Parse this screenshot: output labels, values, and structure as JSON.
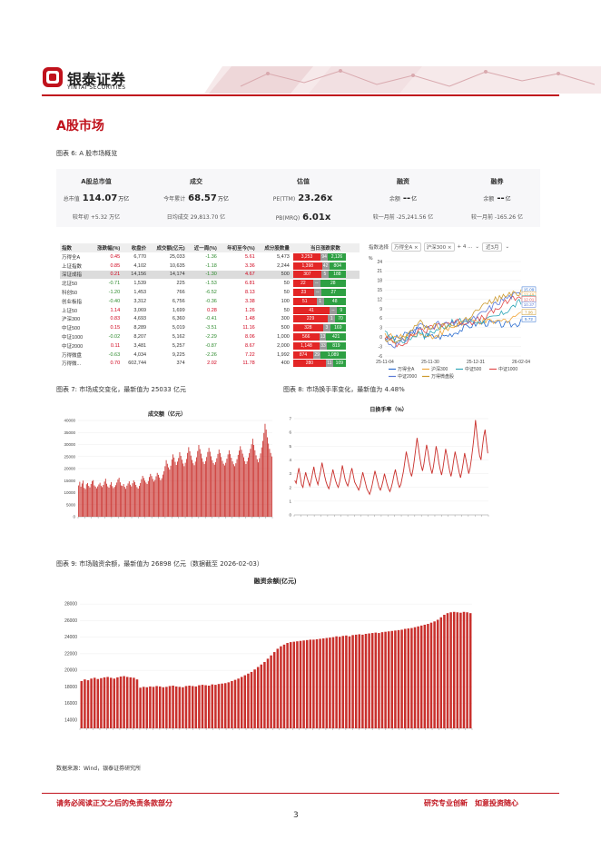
{
  "header": {
    "brand_cn": "银泰证券",
    "brand_en": "YINTAI SECURITIES"
  },
  "section_title": "A股市场",
  "fig6": {
    "caption": "图表 6: A 股市场概览"
  },
  "overview": {
    "cols": [
      {
        "title": "A股总市值",
        "r1_label": "总市值",
        "r1_value": "114.07",
        "r1_unit": "万亿",
        "r2_label": "较年初",
        "r2_value": "+5.32 万亿"
      },
      {
        "title": "成交",
        "r1_label": "今年累计",
        "r1_value": "68.57",
        "r1_unit": "万亿",
        "r2_label": "日均成交",
        "r2_value": "29,813.70 亿"
      },
      {
        "title": "估值",
        "r1_label": "PE(TTM)",
        "r1_value": "23.26x",
        "r1_unit": "",
        "r2_label": "PB(MRQ)",
        "r2_value": "6.01x"
      },
      {
        "title": "融资",
        "r1_label": "余额",
        "r1_value": "--",
        "r1_unit": "亿",
        "r2_label": "较一月前",
        "r2_value": "-25,241.56 亿"
      },
      {
        "title": "融券",
        "r1_label": "余额",
        "r1_value": "--",
        "r1_unit": "亿",
        "r2_label": "较一月前",
        "r2_value": "-165.26 亿"
      }
    ]
  },
  "market_table": {
    "headers": [
      "指数",
      "涨跌幅(%)",
      "收盘价",
      "成交额(亿元)",
      "近一周(%)",
      "年初至今(%)",
      "成分股数量",
      "当日涨跌家数"
    ],
    "rows": [
      [
        "万得全A",
        "0.45",
        "6,770",
        "25,033",
        "-1.36",
        "5.61",
        "5,473",
        "3,253",
        "94",
        "2,126"
      ],
      [
        "上证指数",
        "0.85",
        "4,102",
        "10,635",
        "-1.18",
        "3.36",
        "2,244",
        "1,398",
        "42",
        "804"
      ],
      [
        "深证成指",
        "0.21",
        "14,156",
        "14,174",
        "-1.30",
        "4.67",
        "500",
        "307",
        "5",
        "188"
      ],
      [
        "北证50",
        "-0.71",
        "1,539",
        "225",
        "-1.53",
        "6.81",
        "50",
        "22",
        "--",
        "28"
      ],
      [
        "科创50",
        "-1.20",
        "1,453",
        "766",
        "-6.52",
        "8.13",
        "50",
        "23",
        "--",
        "27"
      ],
      [
        "创业板指",
        "-0.40",
        "3,312",
        "6,756",
        "-0.36",
        "3.38",
        "100",
        "51",
        "1",
        "48"
      ],
      [
        "上证50",
        "1.14",
        "3,069",
        "1,699",
        "0.28",
        "1.26",
        "50",
        "41",
        "--",
        "9"
      ],
      [
        "沪深300",
        "0.83",
        "4,693",
        "6,360",
        "-0.41",
        "1.48",
        "300",
        "229",
        "1",
        "70"
      ],
      [
        "中证500",
        "0.15",
        "8,289",
        "5,019",
        "-3.51",
        "11.16",
        "500",
        "328",
        "3",
        "169"
      ],
      [
        "中证1000",
        "-0.02",
        "8,207",
        "5,162",
        "-2.29",
        "8.06",
        "1,000",
        "566",
        "13",
        "421"
      ],
      [
        "中证2000",
        "0.11",
        "3,481",
        "5,257",
        "-0.87",
        "8.67",
        "2,000",
        "1,148",
        "33",
        "819"
      ],
      [
        "万得微盘",
        "-0.63",
        "4,034",
        "9,225",
        "-2.26",
        "7.22",
        "1,992",
        "874",
        "29",
        "1,089"
      ],
      [
        "万得微...",
        "0.70",
        "602,744",
        "374",
        "2.02",
        "11.78",
        "400",
        "280",
        "11",
        "109"
      ]
    ]
  },
  "index_chart": {
    "toolbar_label": "指数选择",
    "chips": [
      "万得全A ×",
      "沪深300 ×",
      "+ 4 ..."
    ],
    "range": "近3月",
    "y_unit": "%",
    "y_ticks": [
      "24",
      "21",
      "18",
      "15",
      "12",
      "9",
      "6",
      "3",
      "0",
      "-3",
      "-6"
    ],
    "x_ticks": [
      "25-11-04",
      "25-11-30",
      "25-12-31",
      "26-02-04"
    ],
    "end_labels": [
      "15.09",
      "13.49",
      "12.25",
      "12.01",
      "10.37",
      "7.96",
      "5.72"
    ],
    "legend": [
      "万得全A",
      "沪深300",
      "中证500",
      "中证1000",
      "中证2000",
      "万得微盘股"
    ],
    "colors": [
      "#2a6ccf",
      "#f0a73a",
      "#2fa7b8",
      "#e14b4b",
      "#5b7ad6",
      "#cc9a2e"
    ]
  },
  "fig7": {
    "caption": "图表 7: 市场成交变化，最新值为 25033 亿元",
    "chart_title": "成交额（亿元）",
    "y_ticks": [
      "40000",
      "35000",
      "30000",
      "25000",
      "20000",
      "15000",
      "10000",
      "5000",
      "0"
    ]
  },
  "fig8": {
    "caption": "图表 8: 市场换手率变化，最新值为 4.48%",
    "chart_title": "日换手率（%）",
    "y_ticks": [
      "7",
      "6",
      "5",
      "4",
      "3",
      "2",
      "1",
      "0"
    ]
  },
  "fig9": {
    "caption": "图表 9: 市场融资余额，最新值为 26898 亿元（数据截至 2026-02-03）",
    "chart_title": "融资余额(亿元)",
    "y_ticks": [
      "28000",
      "26000",
      "24000",
      "22000",
      "20000",
      "18000",
      "16000",
      "14000"
    ]
  },
  "source": "数据来源：Wind，银泰证券研究所",
  "footer": {
    "left": "请务必阅读正文之后的免责条款部分",
    "right": "研究专业创新　如意投资随心",
    "page": "3"
  },
  "chart_data": [
    {
      "type": "bar",
      "title": "成交额（亿元）",
      "ylim": [
        0,
        40000
      ],
      "values": [
        13000,
        14500,
        12500,
        13800,
        15000,
        12000,
        11500,
        13500,
        14000,
        12800,
        12200,
        13600,
        14800,
        15200,
        13000,
        12500,
        11800,
        12600,
        13400,
        14100,
        12900,
        12300,
        13200,
        14600,
        15800,
        13700,
        12600,
        12100,
        13300,
        14400,
        12700,
        11900,
        12400,
        13100,
        14200,
        15500,
        16200,
        14300,
        13000,
        12800,
        13600,
        12400,
        11600,
        12900,
        13800,
        14700,
        13300,
        12600,
        13900,
        15100,
        14400,
        13200,
        12300,
        11700,
        12800,
        14000,
        15600,
        17000,
        16100,
        15000,
        14200,
        13600,
        14800,
        16500,
        17800,
        16900,
        15700,
        14600,
        15300,
        16800,
        18200,
        17400,
        16300,
        15200,
        16000,
        17500,
        18900,
        21000,
        23500,
        22000,
        20500,
        19600,
        21200,
        23800,
        25900,
        24600,
        22800,
        21500,
        22900,
        24400,
        26800,
        25300,
        23700,
        22100,
        21000,
        22400,
        24000,
        26500,
        28900,
        27200,
        25400,
        23600,
        22200,
        21400,
        22900,
        24700,
        27300,
        29800,
        28100,
        26200,
        24300,
        22800,
        21900,
        23100,
        24800,
        26900,
        28600,
        27000,
        25100,
        23500,
        22300,
        21600,
        22700,
        24300,
        26100,
        27900,
        26400,
        24800,
        23200,
        22000,
        21300,
        22400,
        24100,
        25900,
        27600,
        26000,
        24500,
        23000,
        21800,
        21000,
        22200,
        23900,
        25700,
        27500,
        29300,
        27800,
        26200,
        24700,
        23100,
        21900,
        23000,
        24600,
        26400,
        28200,
        30100,
        32400,
        29800,
        27600,
        25500,
        23900,
        22600,
        24300,
        26300,
        28800,
        31500,
        34800,
        38600,
        36200,
        33000,
        30400,
        28200,
        26500,
        25033
      ]
    },
    {
      "type": "line",
      "title": "日换手率（%）",
      "ylim": [
        0,
        7
      ],
      "values": [
        2.5,
        2.3,
        2.9,
        3.4,
        2.8,
        2.2,
        2.0,
        2.6,
        3.1,
        2.7,
        2.4,
        2.1,
        2.5,
        3.0,
        3.5,
        2.9,
        2.5,
        2.2,
        2.7,
        3.2,
        3.8,
        3.3,
        2.8,
        2.4,
        2.1,
        1.9,
        2.3,
        2.8,
        3.3,
        2.9,
        2.5,
        2.2,
        2.0,
        2.4,
        2.9,
        3.6,
        3.1,
        2.6,
        2.3,
        2.1,
        2.5,
        3.0,
        3.4,
        2.9,
        2.4,
        2.2,
        2.0,
        1.8,
        2.1,
        2.6,
        3.1,
        2.7,
        2.3,
        1.9,
        1.7,
        1.5,
        1.8,
        2.2,
        2.7,
        3.2,
        2.8,
        2.4,
        2.0,
        1.8,
        2.1,
        2.5,
        3.0,
        2.6,
        2.2,
        1.9,
        1.7,
        2.0,
        2.4,
        2.9,
        3.3,
        2.8,
        2.3,
        2.0,
        2.2,
        2.7,
        3.2,
        3.9,
        4.6,
        4.1,
        3.6,
        3.1,
        2.8,
        3.3,
        4.0,
        4.8,
        5.6,
        4.9,
        4.2,
        3.6,
        3.2,
        3.7,
        4.4,
        5.1,
        4.6,
        3.9,
        3.4,
        3.0,
        3.5,
        4.2,
        5.0,
        4.5,
        3.8,
        3.3,
        2.9,
        3.4,
        4.1,
        4.8,
        4.3,
        3.7,
        3.2,
        2.8,
        3.3,
        4.0,
        4.6,
        4.1,
        3.6,
        3.1,
        2.7,
        3.2,
        3.8,
        4.5,
        4.0,
        3.5,
        3.0,
        3.4,
        4.1,
        4.9,
        5.8,
        6.9,
        5.9,
        5.0,
        4.3,
        4.0,
        4.9,
        5.7,
        6.2,
        5.3,
        4.48
      ]
    },
    {
      "type": "bar",
      "title": "融资余额(亿元)",
      "ylim": [
        13000,
        29000
      ],
      "values": [
        18700,
        18900,
        18800,
        19000,
        19100,
        18950,
        19050,
        19150,
        19200,
        19100,
        19000,
        19150,
        19250,
        19300,
        19200,
        19150,
        19100,
        18900,
        17900,
        18000,
        17950,
        18050,
        18000,
        18100,
        18050,
        17950,
        18000,
        18100,
        18150,
        18050,
        18000,
        17950,
        18100,
        18150,
        18100,
        18050,
        18200,
        18250,
        18200,
        18150,
        18300,
        18250,
        18350,
        18400,
        18450,
        18550,
        18700,
        18850,
        19000,
        19200,
        19400,
        19600,
        19800,
        20100,
        20400,
        20700,
        21000,
        21400,
        21800,
        22200,
        22600,
        22900,
        23100,
        23300,
        23400,
        23450,
        23500,
        23550,
        23600,
        23650,
        23700,
        23700,
        23750,
        23800,
        23850,
        23900,
        23950,
        24000,
        24100,
        24050,
        24150,
        24200,
        24100,
        24250,
        24300,
        24350,
        24300,
        24400,
        24450,
        24500,
        24550,
        24500,
        24600,
        24650,
        24700,
        24750,
        24800,
        24850,
        24900,
        25000,
        25050,
        25100,
        25200,
        25300,
        25400,
        25500,
        25600,
        25750,
        25900,
        26100,
        26400,
        26700,
        26900,
        27000,
        27050,
        27000,
        26950,
        27050,
        27000,
        26898
      ]
    }
  ]
}
